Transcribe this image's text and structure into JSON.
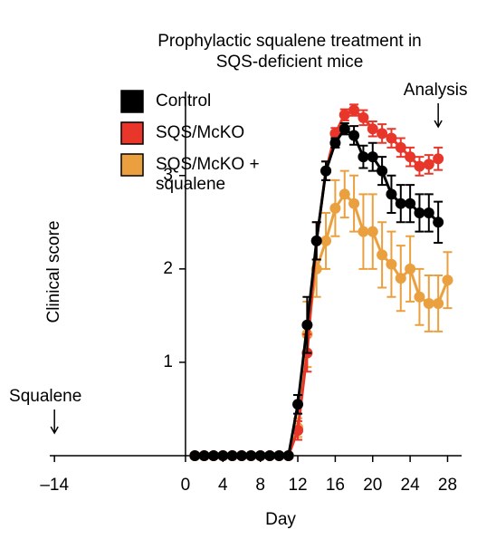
{
  "chart_data": {
    "type": "line",
    "title": "Prophylactic squalene treatment in SQS-deficient mice",
    "x_label": "Day",
    "y_label": "Clinical score",
    "x": [
      1,
      2,
      3,
      4,
      5,
      6,
      7,
      8,
      9,
      10,
      11,
      12,
      13,
      14,
      15,
      16,
      17,
      18,
      19,
      20,
      21,
      22,
      23,
      24,
      25,
      26,
      27,
      28
    ],
    "series": [
      {
        "name": "Control",
        "color": "#000000",
        "values": [
          0,
          0,
          0,
          0,
          0,
          0,
          0,
          0,
          0,
          0,
          0,
          0.55,
          1.4,
          2.3,
          3.05,
          3.35,
          3.5,
          3.43,
          3.2,
          3.2,
          3.05,
          2.8,
          2.7,
          2.7,
          2.6,
          2.6,
          2.5,
          null
        ],
        "errors": [
          0,
          0,
          0,
          0,
          0,
          0,
          0,
          0,
          0,
          0,
          0,
          0.1,
          0.3,
          0.2,
          0.1,
          0.05,
          0.06,
          0.1,
          0.12,
          0.15,
          0.15,
          0.2,
          0.2,
          0.2,
          0.2,
          0.2,
          0.22,
          null
        ]
      },
      {
        "name": "SQS/McKO",
        "color": "#e8372a",
        "values": [
          0,
          0,
          0,
          0,
          0,
          0,
          0,
          0,
          0,
          0,
          0,
          0.27,
          1.1,
          2.3,
          3.05,
          3.45,
          3.65,
          3.7,
          3.62,
          3.5,
          3.45,
          3.4,
          3.3,
          3.2,
          3.1,
          3.12,
          3.18,
          null
        ],
        "errors": [
          0,
          0,
          0,
          0,
          0,
          0,
          0,
          0,
          0,
          0,
          0,
          0.1,
          0.2,
          0.2,
          0.1,
          0.06,
          0.06,
          0.06,
          0.08,
          0.08,
          0.1,
          0.1,
          0.1,
          0.1,
          0.1,
          0.1,
          0.12,
          null
        ]
      },
      {
        "name": "SQS/McKO + squalene",
        "color": "#eba03f",
        "values": [
          0,
          0,
          0,
          0,
          0,
          0,
          0,
          0,
          0,
          0,
          0,
          0.3,
          1.3,
          2.0,
          2.3,
          2.65,
          2.8,
          2.7,
          2.4,
          2.4,
          2.15,
          2.05,
          1.9,
          2.0,
          1.7,
          1.63,
          1.63,
          1.88
        ],
        "errors": [
          0,
          0,
          0,
          0,
          0,
          0,
          0,
          0,
          0,
          0,
          0,
          0.1,
          0.35,
          0.3,
          0.3,
          0.3,
          0.25,
          0.3,
          0.4,
          0.4,
          0.35,
          0.35,
          0.35,
          0.35,
          0.3,
          0.3,
          0.3,
          0.3
        ]
      }
    ],
    "xlim": [
      -14.5,
      29.5
    ],
    "ylim": [
      0,
      3.9
    ],
    "xticks": [
      {
        "value": -14,
        "label": "–14"
      },
      0,
      4,
      8,
      12,
      16,
      20,
      24,
      28
    ],
    "yticks": [
      1,
      2,
      3
    ],
    "legend": "upper left",
    "annotations": [
      {
        "text": "Squalene",
        "x": -14
      },
      {
        "text": "Analysis",
        "x": 27
      }
    ]
  }
}
